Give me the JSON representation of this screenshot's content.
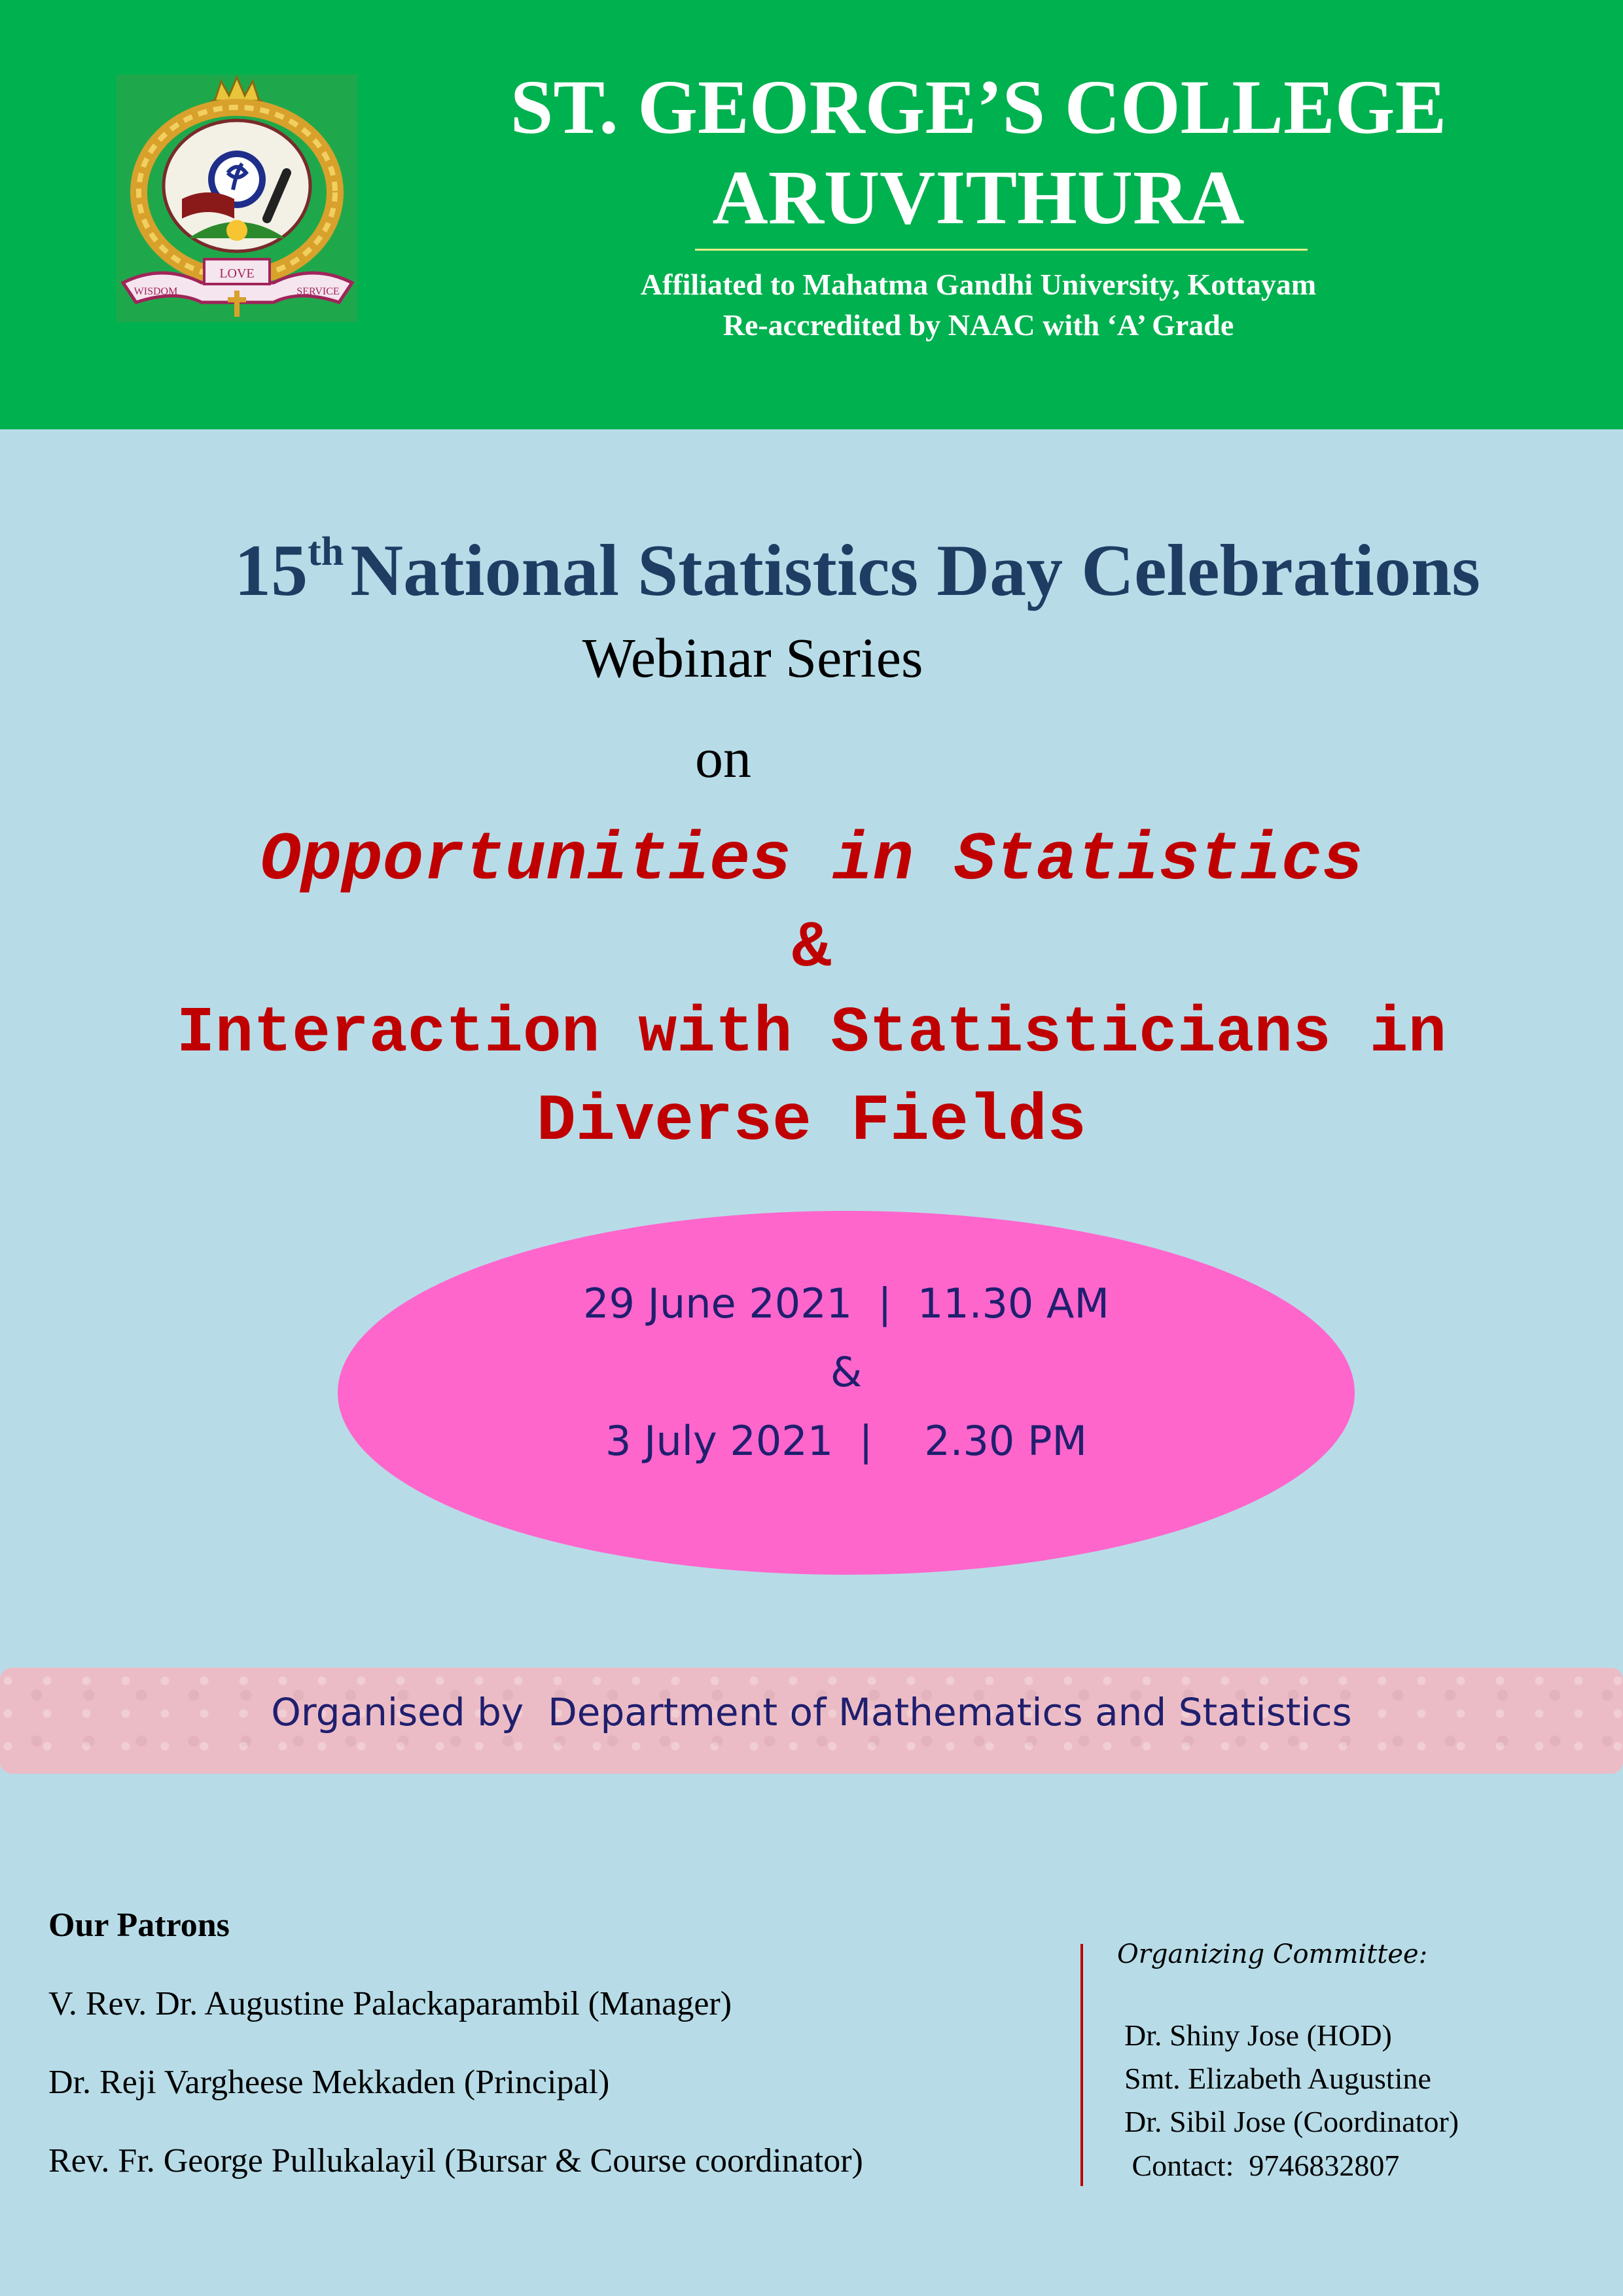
{
  "header": {
    "college_name_line1": "ST. GEORGE’S COLLEGE",
    "college_name_line2": "ARUVITHURA",
    "affiliation": "Affiliated to Mahatma Gandhi University, Kottayam",
    "accreditation": "Re-accredited by NAAC with ‘A’   Grade",
    "logo_text_left": "WISDOM",
    "logo_text_center": "LOVE",
    "logo_text_right": "SERVICE"
  },
  "event": {
    "title_number": "15",
    "title_suffix": "th",
    "title_rest": "National Statistics Day Celebrations",
    "series": "Webinar Series",
    "connector": "on",
    "topic_line1": "Opportunities in Statistics",
    "topic_line2": "&",
    "topic_line3": "Interaction with Statisticians in",
    "topic_line4": "Diverse Fields"
  },
  "schedule": {
    "line1": "29 June 2021  |  11.30 AM",
    "line2": "&",
    "line3": "3 July 2021  |    2.30 PM"
  },
  "organiser": {
    "text": "Organised by  Department of Mathematics and Statistics"
  },
  "patrons": {
    "heading": "Our Patrons",
    "items": [
      "V. Rev. Dr. Augustine Palackaparambil (Manager)",
      "Dr. Reji Vargheese Mekkaden (Principal)",
      "Rev. Fr. George Pullukalayil (Bursar & Course coordinator)"
    ]
  },
  "committee": {
    "heading": "Organizing Committee:",
    "members": [
      "Dr. Shiny Jose (HOD)",
      "Smt. Elizabeth Augustine",
      "Dr. Sibil Jose (Coordinator)",
      " Contact:  9746832807"
    ]
  }
}
